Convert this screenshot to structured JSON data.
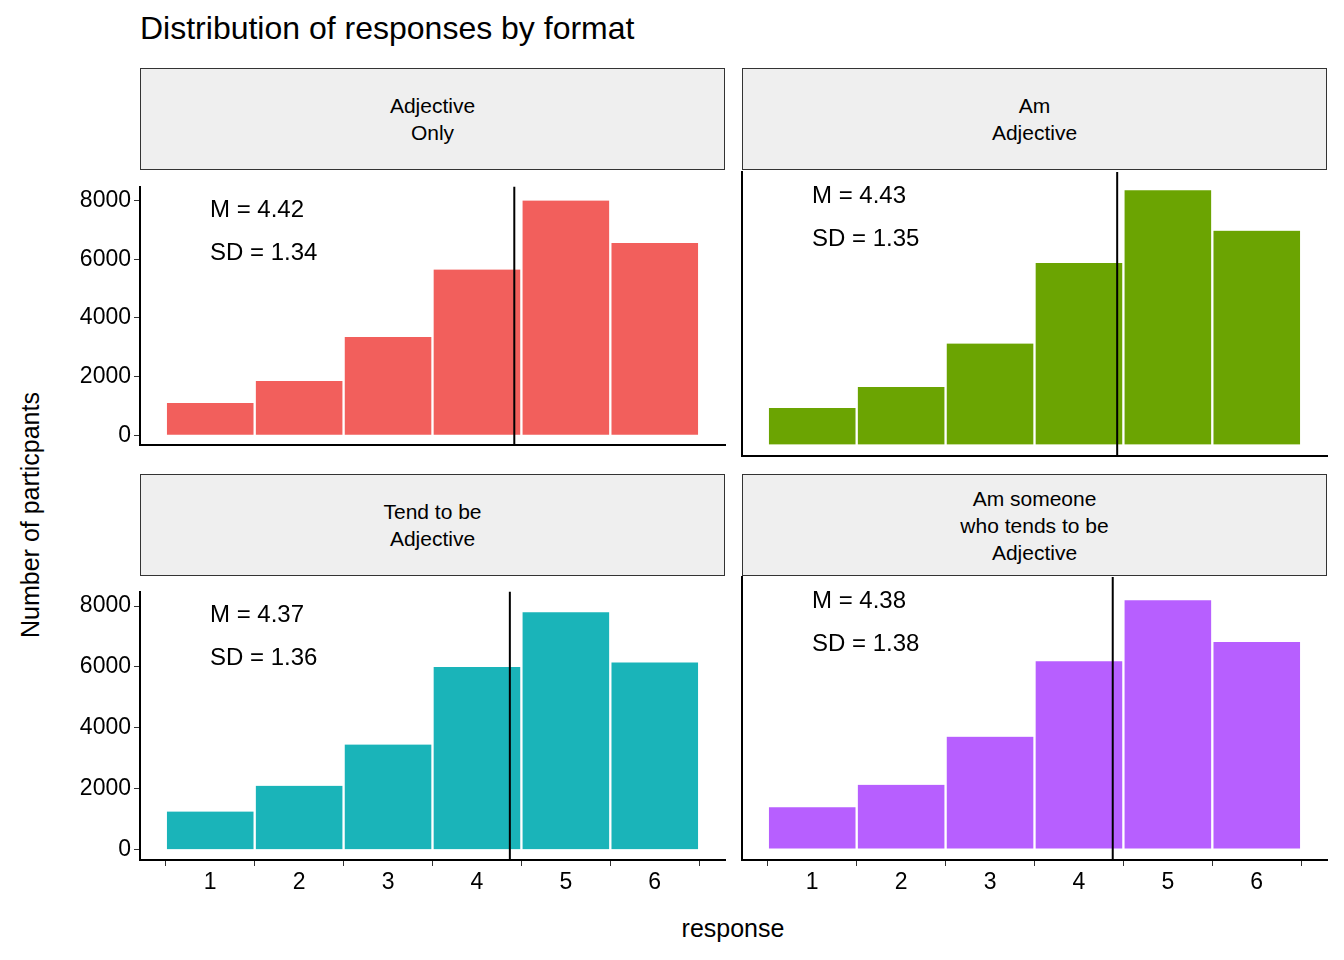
{
  "title": "Distribution of responses by format",
  "x_label": "response",
  "y_label": "Number of particpants",
  "chart_data": [
    {
      "type": "histogram",
      "title": [
        "Adjective",
        "Only"
      ],
      "bins": [
        0.5,
        1.5,
        2.5,
        3.5,
        4.5,
        5.5,
        6.5
      ],
      "values": [
        1100,
        1850,
        3350,
        5650,
        8000,
        6550
      ],
      "color": "#f25f5c",
      "mean": 4.42,
      "annotations": [
        "M = 4.42",
        "SD = 1.34"
      ],
      "xlim": [
        0.21,
        6.79
      ],
      "ylim": [
        -340,
        8470
      ],
      "xticks": [
        1,
        2,
        3,
        4,
        5,
        6
      ],
      "yticks": [
        0,
        2000,
        4000,
        6000,
        8000
      ],
      "grid": false,
      "tick_labels": "y"
    },
    {
      "type": "histogram",
      "title": [
        "Am",
        "Adjective"
      ],
      "bins": [
        0.5,
        1.5,
        2.5,
        3.5,
        4.5,
        5.5,
        6.5
      ],
      "values": [
        1150,
        1800,
        3150,
        5650,
        7900,
        6650
      ],
      "color": "#6ba402",
      "mean": 4.43,
      "annotations": [
        "M = 4.43",
        "SD = 1.35"
      ],
      "xlim": [
        0.21,
        6.79
      ],
      "ylim": [
        -340,
        8470
      ],
      "xticks": [
        1,
        2,
        3,
        4,
        5,
        6
      ],
      "yticks": [
        0,
        2000,
        4000,
        6000,
        8000
      ],
      "grid": false,
      "tick_labels": false
    },
    {
      "type": "histogram",
      "title": [
        "Tend to be",
        "Adjective"
      ],
      "bins": [
        0.5,
        1.5,
        2.5,
        3.5,
        4.5,
        5.5,
        6.5
      ],
      "values": [
        1250,
        2100,
        3450,
        6000,
        7800,
        6150
      ],
      "color": "#1ab4b9",
      "mean": 4.37,
      "annotations": [
        "M = 4.37",
        "SD = 1.36"
      ],
      "xlim": [
        0.21,
        6.79
      ],
      "ylim": [
        -340,
        8470
      ],
      "xticks": [
        1,
        2,
        3,
        4,
        5,
        6
      ],
      "yticks": [
        0,
        2000,
        4000,
        6000,
        8000
      ],
      "grid": false,
      "tick_labels": true
    },
    {
      "type": "histogram",
      "title": [
        "Am someone",
        "who tends to be",
        "Adjective"
      ],
      "bins": [
        0.5,
        1.5,
        2.5,
        3.5,
        4.5,
        5.5,
        6.5
      ],
      "values": [
        1300,
        2000,
        3500,
        5850,
        7750,
        6450
      ],
      "color": "#b75fff",
      "mean": 4.38,
      "annotations": [
        "M = 4.38",
        "SD = 1.38"
      ],
      "xlim": [
        0.21,
        6.79
      ],
      "ylim": [
        -340,
        8470
      ],
      "xticks": [
        1,
        2,
        3,
        4,
        5,
        6
      ],
      "yticks": [
        0,
        2000,
        4000,
        6000,
        8000
      ],
      "grid": false,
      "tick_labels": "x"
    }
  ]
}
